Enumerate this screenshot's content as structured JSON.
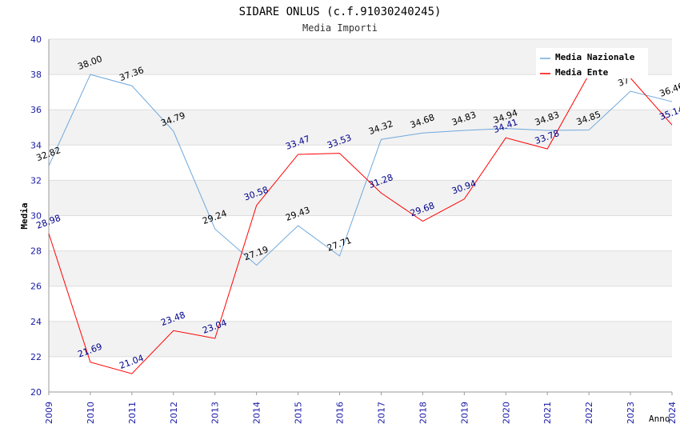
{
  "chart_data": {
    "type": "line",
    "title": "SIDARE ONLUS (c.f.91030240245)",
    "subtitle": "Media Importi",
    "xlabel": "Anno",
    "ylabel": "Media",
    "ylim": [
      20,
      40
    ],
    "y_ticks": [
      "20",
      "22",
      "24",
      "26",
      "28",
      "30",
      "32",
      "34",
      "36",
      "38",
      "40"
    ],
    "x": [
      "2009",
      "2010",
      "2011",
      "2012",
      "2013",
      "2014",
      "2015",
      "2016",
      "2017",
      "2018",
      "2019",
      "2020",
      "2021",
      "2022",
      "2023",
      "2024"
    ],
    "grid": true,
    "legend_position": "top-right",
    "series": [
      {
        "name": "Media Nazionale",
        "color": "#6fa8dc",
        "label_color": "#000000",
        "values": [
          32.82,
          38.0,
          37.36,
          34.79,
          29.24,
          27.19,
          29.43,
          27.71,
          34.32,
          34.68,
          34.83,
          34.94,
          34.83,
          34.85,
          37.05,
          36.46
        ],
        "labels": [
          "32.82",
          "38.00",
          "37.36",
          "34.79",
          "29.24",
          "27.19",
          "29.43",
          "27.71",
          "34.32",
          "34.68",
          "34.83",
          "34.94",
          "34.83",
          "34.85",
          "37",
          "36.46"
        ]
      },
      {
        "name": "Media Ente",
        "color": "#ff0000",
        "label_color": "#00008b",
        "values": [
          28.98,
          21.69,
          21.04,
          23.48,
          23.04,
          30.58,
          33.47,
          33.53,
          31.28,
          29.68,
          30.94,
          34.41,
          33.78,
          38.0,
          37.8,
          35.14
        ],
        "labels": [
          "28.98",
          "21.69",
          "21.04",
          "23.48",
          "23.04",
          "30.58",
          "33.47",
          "33.53",
          "31.28",
          "29.68",
          "30.94",
          "34.41",
          "33.78",
          "",
          "",
          "35.14"
        ]
      }
    ]
  }
}
